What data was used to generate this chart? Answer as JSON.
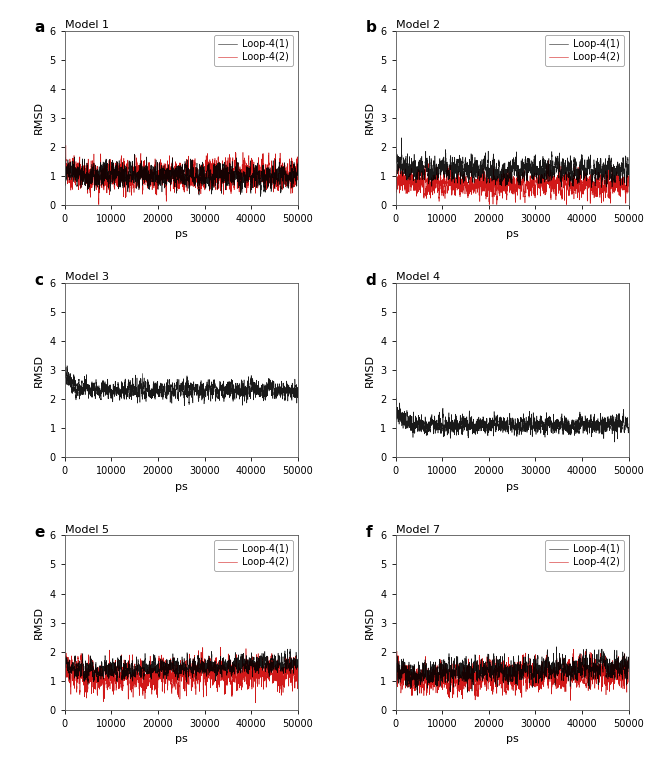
{
  "panels": [
    {
      "label": "a",
      "title": "Model 1",
      "has_two_loops": true,
      "loop1_color": "#000000",
      "loop2_color": "#cc0000",
      "loop1_params": {
        "base": 1.0,
        "noise": 0.2,
        "trend": 0.0,
        "initial_spike": 0.3
      },
      "loop2_params": {
        "base": 1.0,
        "noise": 0.25,
        "trend": 0.0,
        "initial_spike": 0.4
      }
    },
    {
      "label": "b",
      "title": "Model 2",
      "has_two_loops": true,
      "loop1_color": "#000000",
      "loop2_color": "#cc0000",
      "loop1_params": {
        "base": 1.2,
        "noise": 0.2,
        "trend": 0.0,
        "initial_spike": 0.5
      },
      "loop2_params": {
        "base": 0.7,
        "noise": 0.2,
        "trend": 0.0,
        "initial_spike": 0.3
      }
    },
    {
      "label": "c",
      "title": "Model 3",
      "has_two_loops": false,
      "loop1_color": "#000000",
      "loop2_color": null,
      "loop1_params": {
        "base": 2.3,
        "noise": 0.15,
        "trend": 0.0,
        "initial_spike": 0.6
      }
    },
    {
      "label": "d",
      "title": "Model 4",
      "has_two_loops": false,
      "loop1_color": "#000000",
      "loop2_color": null,
      "loop1_params": {
        "base": 1.1,
        "noise": 0.15,
        "trend": 0.0,
        "initial_spike": 0.7
      }
    },
    {
      "label": "e",
      "title": "Model 5",
      "has_two_loops": true,
      "loop1_color": "#000000",
      "loop2_color": "#cc0000",
      "loop1_params": {
        "base": 1.3,
        "noise": 0.15,
        "trend": 0.3,
        "initial_spike": 0.3
      },
      "loop2_params": {
        "base": 1.1,
        "noise": 0.25,
        "trend": 0.2,
        "initial_spike": 0.5
      }
    },
    {
      "label": "f",
      "title": "Model 7",
      "has_two_loops": true,
      "loop1_color": "#000000",
      "loop2_color": "#cc0000",
      "loop1_params": {
        "base": 1.2,
        "noise": 0.2,
        "trend": 0.3,
        "initial_spike": 0.3
      },
      "loop2_params": {
        "base": 1.0,
        "noise": 0.25,
        "trend": 0.3,
        "initial_spike": 0.3
      }
    }
  ],
  "xlim": [
    0,
    50000
  ],
  "ylim": [
    0,
    6
  ],
  "xlabel": "ps",
  "ylabel": "RMSD",
  "xticks": [
    0,
    10000,
    20000,
    30000,
    40000,
    50000
  ],
  "yticks": [
    0,
    1,
    2,
    3,
    4,
    5,
    6
  ],
  "legend_labels": [
    "Loop-4(1)",
    "Loop-4(2)"
  ],
  "fig_bg_color": "#ffffff",
  "n_points": 5000,
  "linewidth": 0.4,
  "legend_fontsize": 7,
  "title_fontsize": 8,
  "tick_fontsize": 7,
  "label_fontsize": 8,
  "panel_label_fontsize": 11
}
